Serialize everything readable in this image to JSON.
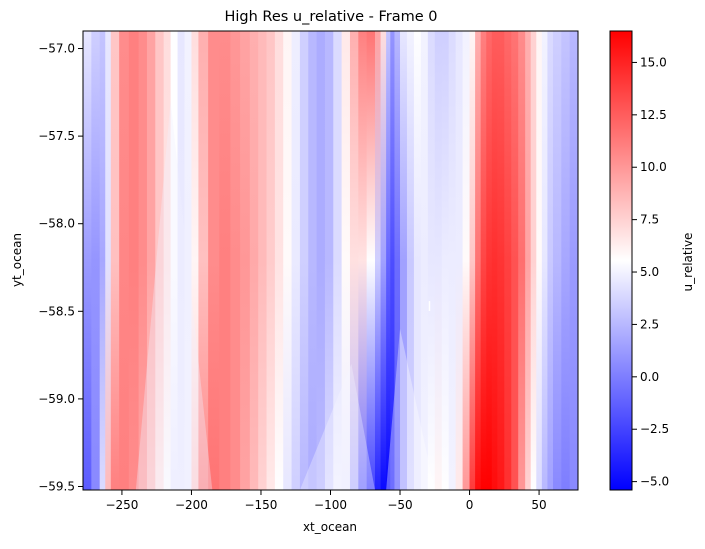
{
  "chart_data": {
    "type": "heatmap",
    "title": "High Res u_relative - Frame 0",
    "xlabel": "xt_ocean",
    "ylabel": "yt_ocean",
    "xlim": [
      -278,
      78
    ],
    "ylim": [
      -59.52,
      -56.9
    ],
    "x_ticks": [
      -250,
      -200,
      -150,
      -100,
      -50,
      0,
      50
    ],
    "x_tick_labels": [
      "−250",
      "−200",
      "−150",
      "−100",
      "−50",
      "0",
      "50"
    ],
    "y_ticks": [
      -57.0,
      -57.5,
      -58.0,
      -58.5,
      -59.0,
      -59.5
    ],
    "y_tick_labels": [
      "−57.0",
      "−57.5",
      "−58.0",
      "−58.5",
      "−59.0",
      "−59.5"
    ],
    "colorbar": {
      "label": "u_relative",
      "vmin": -5.4,
      "vmax": 16.5,
      "colormap": [
        "#0000ff",
        "#ffffff",
        "#ff0000"
      ],
      "ticks": [
        -5.0,
        -2.5,
        0.0,
        2.5,
        5.0,
        7.5,
        10.0,
        12.5,
        15.0
      ],
      "tick_labels": [
        "−5.0",
        "−2.5",
        "0.0",
        "2.5",
        "5.0",
        "7.5",
        "10.0",
        "12.5",
        "15.0"
      ]
    },
    "column_profile": {
      "x": [
        -278,
        -272,
        -266,
        -262,
        -258,
        -252,
        -245,
        -238,
        -232,
        -226,
        -220,
        -215,
        -210,
        -205,
        -200,
        -195,
        -188,
        -180,
        -172,
        -165,
        -158,
        -152,
        -146,
        -140,
        -134,
        -128,
        -122,
        -116,
        -110,
        -104,
        -98,
        -92,
        -86,
        -80,
        -74,
        -68,
        -64,
        -60,
        -57,
        -54,
        -50,
        -45,
        -40,
        -35,
        -30,
        -25,
        -20,
        -15,
        -10,
        -5,
        0,
        4,
        8,
        12,
        16,
        20,
        25,
        30,
        35,
        40,
        44,
        48,
        52,
        56,
        60,
        66,
        72,
        78
      ],
      "top": [
        4.5,
        3.5,
        3.0,
        4.5,
        8.0,
        10.5,
        11.0,
        10.5,
        9.5,
        8.0,
        7.0,
        5.5,
        4.5,
        5.0,
        7.0,
        9.0,
        10.5,
        10.5,
        10.0,
        9.5,
        9.0,
        8.5,
        8.0,
        7.0,
        6.0,
        4.8,
        3.5,
        2.5,
        2.0,
        2.5,
        4.0,
        6.5,
        9.0,
        11.0,
        11.5,
        9.5,
        7.0,
        3.0,
        1.0,
        2.5,
        4.5,
        5.0,
        5.5,
        5.0,
        4.0,
        3.5,
        3.5,
        4.0,
        4.5,
        5.0,
        6.0,
        9.0,
        11.0,
        12.0,
        12.5,
        12.5,
        12.0,
        11.5,
        10.5,
        9.0,
        7.5,
        6.0,
        5.0,
        4.0,
        3.5,
        3.0,
        2.5,
        2.5
      ],
      "bottom": [
        -2.0,
        -1.5,
        0.5,
        4.0,
        8.5,
        11.0,
        11.0,
        10.5,
        9.5,
        8.0,
        6.5,
        5.5,
        4.8,
        4.8,
        5.0,
        7.5,
        10.5,
        11.5,
        11.0,
        10.5,
        9.5,
        8.5,
        7.5,
        6.5,
        5.5,
        4.5,
        3.5,
        2.5,
        2.0,
        2.5,
        4.0,
        5.0,
        4.8,
        2.5,
        -0.5,
        -2.5,
        -4.0,
        -5.0,
        -5.2,
        -4.0,
        -1.5,
        1.5,
        3.5,
        4.5,
        5.0,
        5.5,
        6.0,
        5.5,
        5.0,
        6.5,
        10.0,
        14.0,
        16.0,
        16.5,
        16.5,
        16.0,
        15.5,
        14.5,
        13.0,
        10.0,
        7.5,
        5.5,
        4.0,
        2.5,
        1.5,
        0.5,
        0.0,
        0.5
      ]
    },
    "wedges": [
      {
        "x_tip": -215,
        "y_tip": -57.3,
        "x_base_left": -240,
        "x_base_right": -185,
        "value": 5.0
      },
      {
        "x_tip": -85,
        "y_tip": -58.8,
        "x_base_left": -122,
        "x_base_right": -68,
        "value": 5.2
      },
      {
        "x_tip": -50,
        "y_tip": -58.6,
        "x_base_left": -60,
        "x_base_right": -25,
        "value": 5.5
      }
    ],
    "annotation_mark": {
      "x": -29,
      "y": -58.47,
      "value": "white"
    }
  }
}
